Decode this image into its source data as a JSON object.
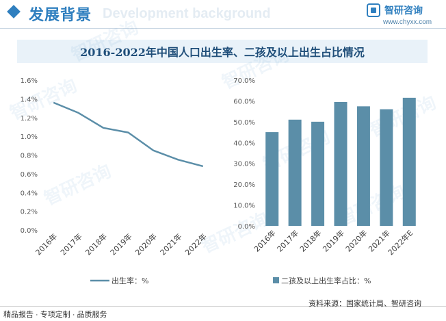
{
  "header": {
    "title": "发展背景",
    "bg_word": "Development background",
    "logo_name": "智研咨询",
    "logo_url": "www.chyxx.com"
  },
  "watermark_text": "智研咨询",
  "title": "2016-2022年中国人口出生率、二孩及以上出生占比情况",
  "chart_data": [
    {
      "type": "line",
      "title": "2016-2022年中国人口出生率、二孩及以上出生占比情况",
      "categories": [
        "2016年",
        "2017年",
        "2018年",
        "2019年",
        "2020年",
        "2021年",
        "2022年"
      ],
      "series": [
        {
          "name": "出生率：%",
          "values": [
            1.36,
            1.25,
            1.09,
            1.04,
            0.85,
            0.75,
            0.68
          ],
          "color": "#5b8ea8"
        }
      ],
      "ylim": [
        0,
        1.6
      ],
      "yticks": [
        "0.0%",
        "0.2%",
        "0.4%",
        "0.6%",
        "0.8%",
        "1.0%",
        "1.2%",
        "1.4%",
        "1.6%"
      ],
      "grid": false,
      "legend": "bottom"
    },
    {
      "type": "bar",
      "categories": [
        "2016年",
        "2017年",
        "2018年",
        "2019年",
        "2020年",
        "2021年",
        "2022年E"
      ],
      "series": [
        {
          "name": "二孩及以上出生率占比：%",
          "values": [
            45,
            51,
            50,
            59.5,
            57.4,
            56,
            61.5
          ],
          "color": "#5b8ea8"
        }
      ],
      "ylim": [
        0,
        70
      ],
      "yticks": [
        "0.0%",
        "10.0%",
        "20.0%",
        "30.0%",
        "40.0%",
        "50.0%",
        "60.0%",
        "70.0%"
      ],
      "grid": false,
      "legend": "bottom"
    }
  ],
  "footer": {
    "left": "精品报告 · 专项定制 · 品质服务",
    "source": "资料来源：国家统计局、智研咨询"
  }
}
